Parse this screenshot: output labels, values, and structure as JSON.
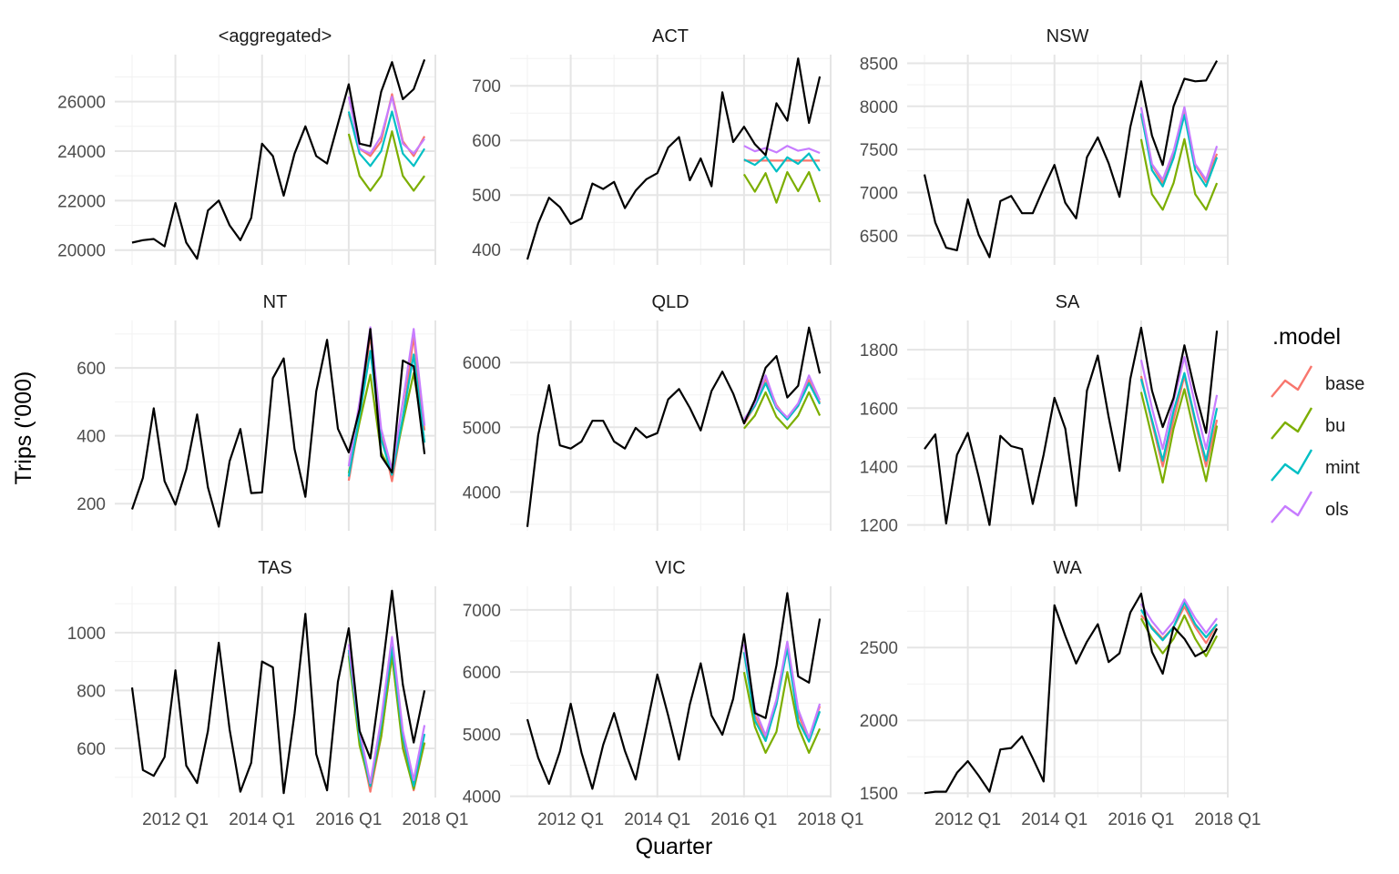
{
  "chart_data": {
    "type": "line",
    "ylabel": "Trips ('000)",
    "xlabel": "Quarter",
    "x_ticks": [
      "2012 Q1",
      "2014 Q1",
      "2016 Q1",
      "2018 Q1"
    ],
    "grid": true,
    "legend": {
      "title": ".model",
      "position": "right",
      "entries": [
        {
          "name": "base",
          "color": "#F8766D"
        },
        {
          "name": "bu",
          "color": "#7CAE00"
        },
        {
          "name": "mint",
          "color": "#00BFC4"
        },
        {
          "name": "ols",
          "color": "#C77CFF"
        }
      ]
    },
    "actual_color": "#000000",
    "actual_x": [
      "2011 Q1",
      "2011 Q2",
      "2011 Q3",
      "2011 Q4",
      "2012 Q1",
      "2012 Q2",
      "2012 Q3",
      "2012 Q4",
      "2013 Q1",
      "2013 Q2",
      "2013 Q3",
      "2013 Q4",
      "2014 Q1",
      "2014 Q2",
      "2014 Q3",
      "2014 Q4",
      "2015 Q1",
      "2015 Q2",
      "2015 Q3",
      "2015 Q4",
      "2016 Q1",
      "2016 Q2",
      "2016 Q3",
      "2016 Q4",
      "2017 Q1",
      "2017 Q2",
      "2017 Q3",
      "2017 Q4"
    ],
    "forecast_x": [
      "2016 Q1",
      "2016 Q2",
      "2016 Q3",
      "2016 Q4",
      "2017 Q1",
      "2017 Q2",
      "2017 Q3",
      "2017 Q4"
    ],
    "panels": [
      {
        "title": "<aggregated>",
        "yticks": [
          20000,
          22000,
          24000,
          26000
        ],
        "ylim": [
          19400,
          27900
        ],
        "actual": [
          20300,
          20400,
          20450,
          20150,
          21900,
          20300,
          19650,
          21600,
          22000,
          21000,
          20400,
          21300,
          24300,
          23800,
          22200,
          23900,
          25000,
          23800,
          23500,
          25100,
          26700,
          24300,
          24200,
          26400,
          27600,
          26100,
          26500,
          27700
        ],
        "forecasts": {
          "base": [
            25500,
            24100,
            23800,
            24400,
            26300,
            24400,
            23800,
            24600
          ],
          "bu": [
            24700,
            23000,
            22400,
            23000,
            24800,
            23000,
            22400,
            23000
          ],
          "mint": [
            25600,
            23900,
            23400,
            24000,
            25600,
            23900,
            23400,
            24100
          ],
          "ols": [
            26200,
            24100,
            23900,
            24600,
            26200,
            24300,
            23900,
            24500
          ]
        }
      },
      {
        "title": "ACT",
        "yticks": [
          400,
          500,
          600,
          700
        ],
        "ylim": [
          372,
          757
        ],
        "actual": [
          382,
          448,
          495,
          478,
          447,
          457,
          521,
          511,
          524,
          476,
          508,
          529,
          540,
          587,
          606,
          527,
          567,
          516,
          688,
          597,
          625,
          593,
          573,
          668,
          636,
          750,
          632,
          717
        ],
        "forecasts": {
          "base": [
            563,
            563,
            563,
            563,
            563,
            563,
            563,
            563
          ],
          "bu": [
            538,
            506,
            540,
            486,
            542,
            507,
            542,
            487
          ],
          "mint": [
            565,
            555,
            571,
            543,
            569,
            557,
            576,
            544
          ],
          "ols": [
            590,
            580,
            586,
            578,
            590,
            581,
            585,
            577
          ]
        }
      },
      {
        "title": "NSW",
        "yticks": [
          6500,
          7000,
          7500,
          8000,
          8500
        ],
        "ylim": [
          6160,
          8600
        ],
        "actual": [
          7210,
          6650,
          6360,
          6330,
          6920,
          6510,
          6250,
          6900,
          6960,
          6760,
          6760,
          7050,
          7320,
          6880,
          6700,
          7410,
          7640,
          7340,
          6950,
          7760,
          8290,
          7660,
          7320,
          8000,
          8320,
          8290,
          8300,
          8530
        ],
        "forecasts": {
          "base": [
            7900,
            7320,
            7110,
            7460,
            7940,
            7320,
            7120,
            7450
          ],
          "bu": [
            7620,
            6980,
            6800,
            7110,
            7620,
            6980,
            6800,
            7110
          ],
          "mint": [
            7920,
            7260,
            7070,
            7400,
            7900,
            7260,
            7070,
            7410
          ],
          "ols": [
            7990,
            7330,
            7150,
            7480,
            7990,
            7330,
            7150,
            7540
          ]
        }
      },
      {
        "title": "NT",
        "yticks": [
          200,
          400,
          600
        ],
        "ylim": [
          120,
          740
        ],
        "actual": [
          183,
          276,
          481,
          266,
          197,
          301,
          463,
          248,
          132,
          325,
          420,
          231,
          233,
          570,
          628,
          361,
          220,
          531,
          683,
          421,
          351,
          478,
          715,
          340,
          292,
          622,
          605,
          346
        ],
        "forecasts": {
          "base": [
            268,
            450,
            698,
            410,
            266,
            450,
            693,
            416
          ],
          "bu": [
            290,
            440,
            580,
            350,
            290,
            440,
            585,
            380
          ],
          "mint": [
            280,
            460,
            650,
            390,
            285,
            455,
            640,
            380
          ],
          "ols": [
            310,
            500,
            720,
            420,
            300,
            500,
            715,
            430
          ]
        }
      },
      {
        "title": "QLD",
        "yticks": [
          4000,
          5000,
          6000
        ],
        "ylim": [
          3400,
          6650
        ],
        "actual": [
          3460,
          4880,
          5650,
          4720,
          4670,
          4780,
          5100,
          5100,
          4780,
          4670,
          4990,
          4840,
          4910,
          5430,
          5590,
          5300,
          4950,
          5560,
          5860,
          5520,
          5060,
          5420,
          5920,
          6100,
          5460,
          5640,
          6540,
          5830
        ],
        "forecasts": {
          "base": [
            5050,
            5330,
            5750,
            5340,
            5120,
            5330,
            5730,
            5380
          ],
          "bu": [
            4980,
            5180,
            5540,
            5160,
            4980,
            5180,
            5540,
            5180
          ],
          "mint": [
            5090,
            5330,
            5680,
            5300,
            5120,
            5330,
            5680,
            5360
          ],
          "ols": [
            5120,
            5370,
            5800,
            5320,
            5150,
            5370,
            5800,
            5420
          ]
        }
      },
      {
        "title": "SA",
        "yticks": [
          1200,
          1400,
          1600,
          1800
        ],
        "ylim": [
          1180,
          1900
        ],
        "actual": [
          1460,
          1510,
          1205,
          1440,
          1515,
          1365,
          1200,
          1505,
          1470,
          1460,
          1272,
          1440,
          1635,
          1530,
          1265,
          1660,
          1780,
          1570,
          1385,
          1700,
          1875,
          1660,
          1535,
          1635,
          1815,
          1655,
          1515,
          1865
        ],
        "forecasts": {
          "base": [
            1710,
            1550,
            1400,
            1560,
            1710,
            1550,
            1400,
            1560
          ],
          "bu": [
            1655,
            1500,
            1345,
            1530,
            1665,
            1500,
            1350,
            1540
          ],
          "mint": [
            1700,
            1560,
            1420,
            1590,
            1720,
            1560,
            1420,
            1600
          ],
          "ols": [
            1765,
            1600,
            1460,
            1625,
            1775,
            1610,
            1460,
            1645
          ]
        }
      },
      {
        "title": "TAS",
        "yticks": [
          600,
          800,
          1000
        ],
        "ylim": [
          430,
          1160
        ],
        "actual": [
          810,
          525,
          505,
          570,
          870,
          540,
          480,
          660,
          965,
          665,
          450,
          550,
          900,
          880,
          445,
          720,
          1065,
          580,
          455,
          830,
          1015,
          660,
          565,
          840,
          1145,
          820,
          620,
          800
        ],
        "forecasts": {
          "base": [
            930,
            630,
            450,
            640,
            920,
            620,
            455,
            620
          ],
          "bu": [
            920,
            610,
            470,
            640,
            920,
            600,
            460,
            620
          ],
          "mint": [
            940,
            640,
            470,
            680,
            950,
            640,
            470,
            650
          ],
          "ols": [
            960,
            660,
            480,
            700,
            985,
            660,
            490,
            680
          ]
        }
      },
      {
        "title": "VIC",
        "yticks": [
          4000,
          5000,
          6000,
          7000
        ],
        "ylim": [
          3980,
          7380
        ],
        "actual": [
          5240,
          4620,
          4200,
          4720,
          5490,
          4700,
          4120,
          4830,
          5340,
          4730,
          4270,
          5110,
          5960,
          5300,
          4590,
          5480,
          6140,
          5300,
          4990,
          5570,
          6610,
          5340,
          5260,
          6110,
          7270,
          5930,
          5830,
          6860
        ],
        "forecasts": {
          "base": [
            6320,
            5300,
            4940,
            5480,
            6470,
            5320,
            4920,
            5450
          ],
          "bu": [
            6000,
            5120,
            4700,
            5040,
            6000,
            5120,
            4700,
            5090
          ],
          "mint": [
            6320,
            5220,
            4890,
            5480,
            6380,
            5220,
            4880,
            5370
          ],
          "ols": [
            6450,
            5400,
            4980,
            5560,
            6490,
            5400,
            4940,
            5490
          ]
        }
      },
      {
        "title": "WA",
        "yticks": [
          1500,
          2000,
          2500
        ],
        "ylim": [
          1470,
          2920
        ],
        "actual": [
          1500,
          1510,
          1510,
          1640,
          1720,
          1620,
          1510,
          1800,
          1810,
          1890,
          1740,
          1580,
          2790,
          2580,
          2390,
          2540,
          2660,
          2400,
          2460,
          2740,
          2870,
          2470,
          2320,
          2640,
          2560,
          2440,
          2480,
          2630
        ],
        "forecasts": {
          "base": [
            2720,
            2640,
            2560,
            2640,
            2780,
            2640,
            2530,
            2660
          ],
          "bu": [
            2700,
            2560,
            2460,
            2560,
            2720,
            2560,
            2440,
            2580
          ],
          "mint": [
            2760,
            2630,
            2550,
            2640,
            2810,
            2660,
            2570,
            2660
          ],
          "ols": [
            2800,
            2680,
            2590,
            2680,
            2830,
            2700,
            2600,
            2700
          ]
        }
      }
    ]
  }
}
